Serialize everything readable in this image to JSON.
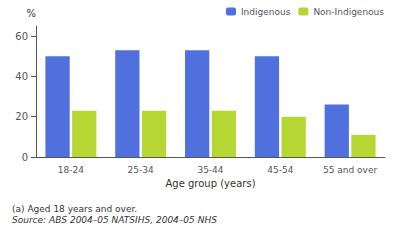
{
  "chart_data": {
    "type": "bar",
    "categories": [
      "18-24",
      "25-34",
      "35-44",
      "45-54",
      "55 and over"
    ],
    "series": [
      {
        "name": "Indigenous",
        "values": [
          50,
          53,
          53,
          50,
          26
        ]
      },
      {
        "name": "Non-Indigenous",
        "values": [
          23,
          23,
          23,
          20,
          11
        ]
      }
    ],
    "xlabel": "Age group (years)",
    "ylabel": "%",
    "ylim": [
      0,
      65
    ],
    "yticks": [
      0,
      20,
      40,
      60
    ],
    "grid": false,
    "legend": "upper right",
    "annotations": [
      "(a) Aged 18 years and over.",
      "Source: ABS 2004–05 NATSIHS, 2004–05 NHS"
    ]
  }
}
